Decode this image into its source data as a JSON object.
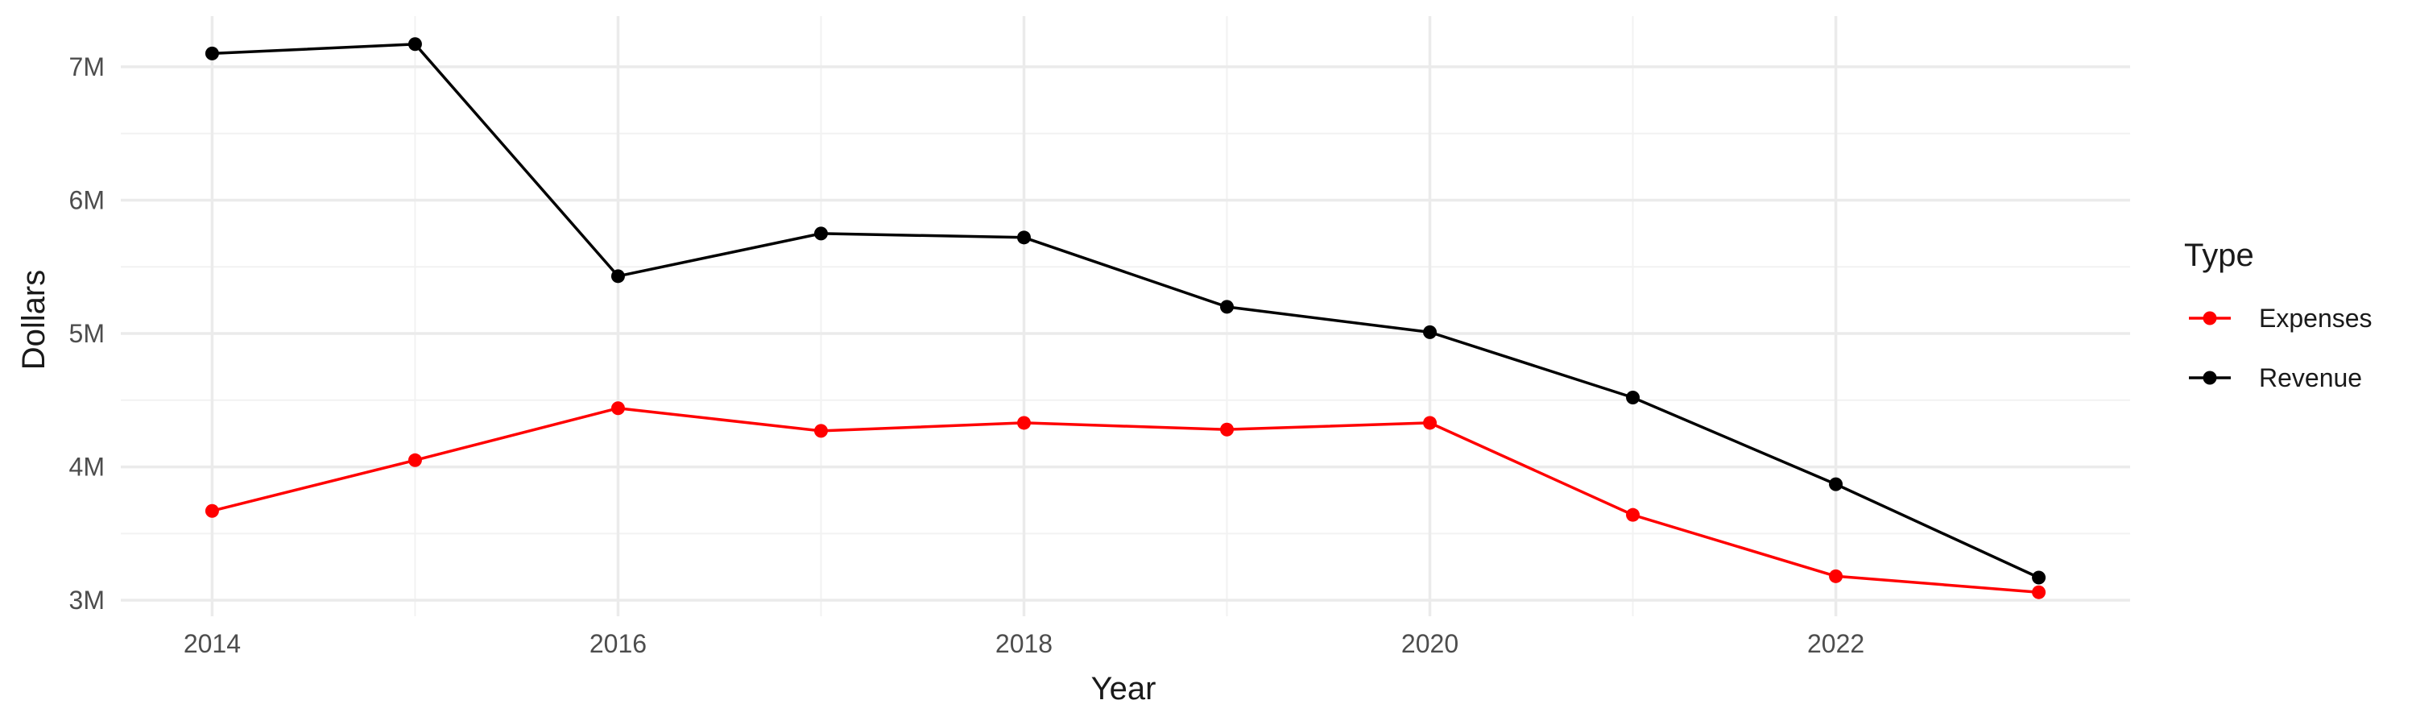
{
  "chart_data": {
    "type": "line",
    "x": [
      2014,
      2015,
      2016,
      2017,
      2018,
      2019,
      2020,
      2021,
      2022,
      2023
    ],
    "series": [
      {
        "name": "Expenses",
        "color": "#ff0000",
        "values": [
          3.67,
          4.05,
          4.44,
          4.27,
          4.33,
          4.28,
          4.33,
          3.64,
          3.18,
          3.06
        ]
      },
      {
        "name": "Revenue",
        "color": "#000000",
        "values": [
          7.1,
          7.17,
          5.43,
          5.75,
          5.72,
          5.2,
          5.01,
          4.52,
          3.87,
          3.17
        ]
      }
    ],
    "xlabel": "Year",
    "ylabel": "Dollars",
    "xlim": [
      2013.55,
      2023.45
    ],
    "ylim": [
      2.88,
      7.38
    ],
    "x_ticks": [
      2014,
      2016,
      2018,
      2020,
      2022
    ],
    "x_tick_labels": [
      "2014",
      "2016",
      "2018",
      "2020",
      "2022"
    ],
    "y_ticks": [
      3,
      4,
      5,
      6,
      7
    ],
    "y_tick_labels": [
      "3M",
      "4M",
      "5M",
      "6M",
      "7M"
    ],
    "grid": true,
    "legend": {
      "title": "Type",
      "position": "right"
    }
  }
}
